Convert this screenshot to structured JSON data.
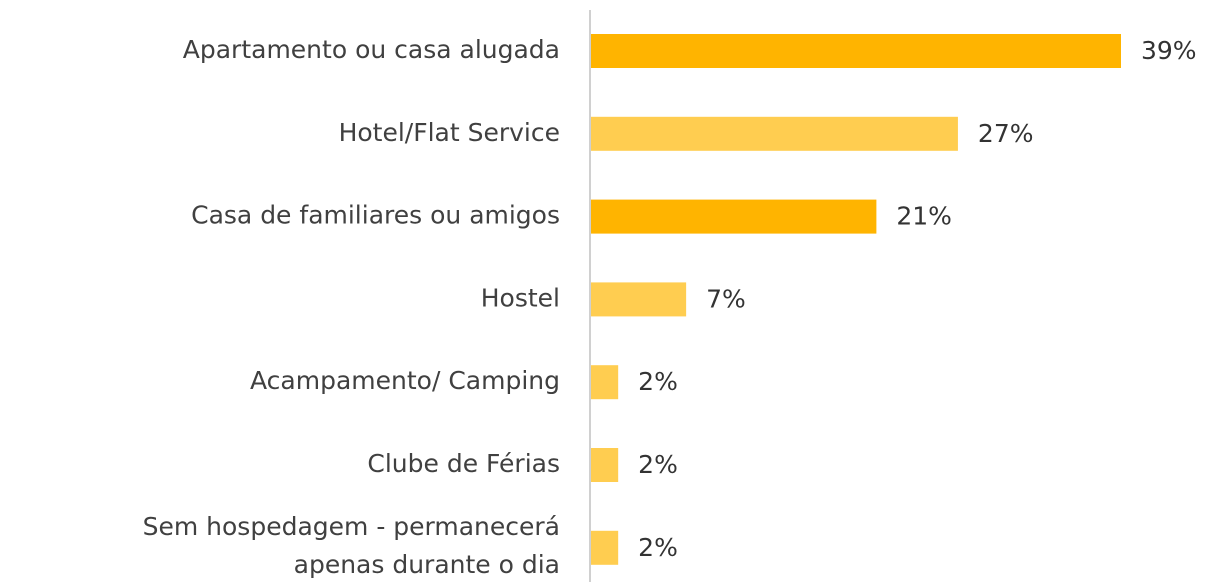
{
  "chart_data": {
    "type": "bar",
    "orientation": "horizontal",
    "categories": [
      "Apartamento ou casa alugada",
      "Hotel/Flat Service",
      "Casa de familiares ou amigos",
      "Hostel",
      "Acampamento/ Camping",
      "Clube de Férias",
      "Sem hospedagem - permanecerá\napenas durante o dia"
    ],
    "values": [
      39,
      27,
      21,
      7,
      2,
      2,
      2
    ],
    "value_labels": [
      "39%",
      "27%",
      "21%",
      "7%",
      "2%",
      "2%",
      "2%"
    ],
    "colors": [
      "#FFB400",
      "#FFCD50",
      "#FFB400",
      "#FFCD50",
      "#FFCD50",
      "#FFCD50",
      "#FFCD50"
    ]
  }
}
